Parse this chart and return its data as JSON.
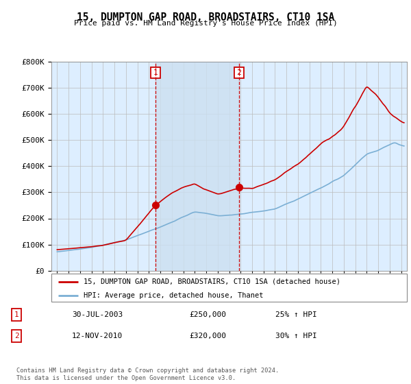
{
  "title": "15, DUMPTON GAP ROAD, BROADSTAIRS, CT10 1SA",
  "subtitle": "Price paid vs. HM Land Registry's House Price Index (HPI)",
  "legend_line1": "15, DUMPTON GAP ROAD, BROADSTAIRS, CT10 1SA (detached house)",
  "legend_line2": "HPI: Average price, detached house, Thanet",
  "transaction1_date": "30-JUL-2003",
  "transaction1_price": "£250,000",
  "transaction1_hpi": "25% ↑ HPI",
  "transaction1_year": 2003.58,
  "transaction1_value": 250000,
  "transaction2_date": "12-NOV-2010",
  "transaction2_price": "£320,000",
  "transaction2_hpi": "30% ↑ HPI",
  "transaction2_year": 2010.87,
  "transaction2_value": 320000,
  "footer": "Contains HM Land Registry data © Crown copyright and database right 2024.\nThis data is licensed under the Open Government Licence v3.0.",
  "hpi_color": "#7bafd4",
  "price_color": "#cc0000",
  "vline_color": "#cc0000",
  "shade_color": "#cce0f0",
  "background_color": "#ddeeff",
  "plot_bg": "#ffffff",
  "ylim": [
    0,
    800000
  ],
  "yticks": [
    0,
    100000,
    200000,
    300000,
    400000,
    500000,
    600000,
    700000,
    800000
  ],
  "xmin": 1994.5,
  "xmax": 2025.5,
  "note_color": "#555555"
}
